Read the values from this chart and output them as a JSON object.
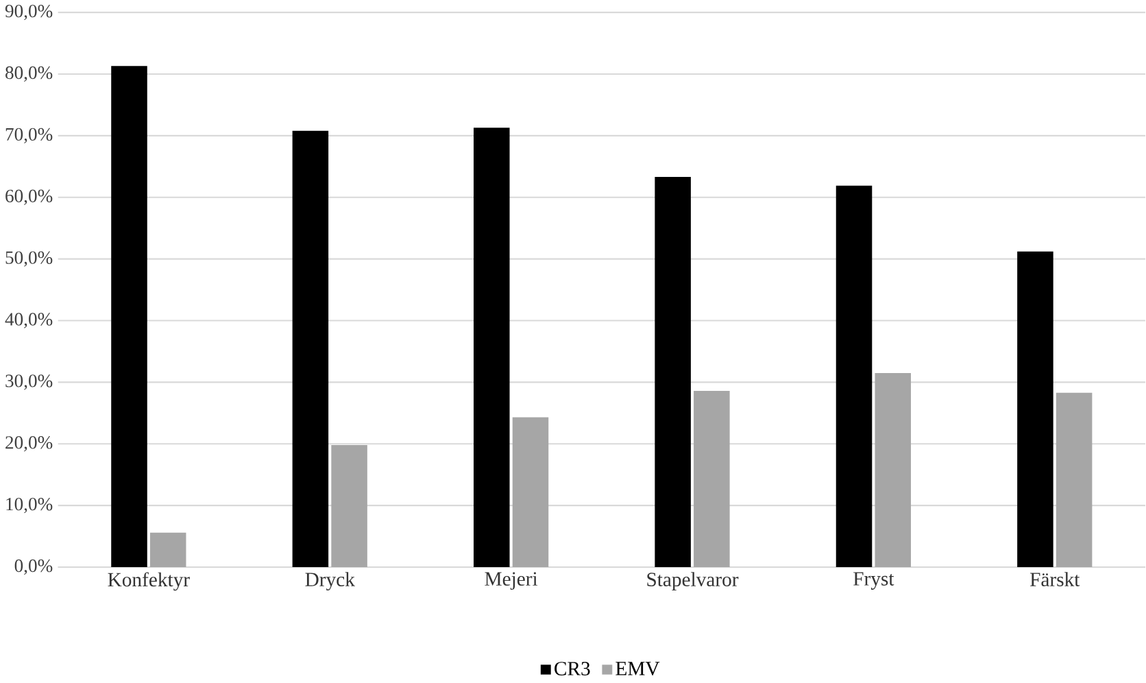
{
  "chart_data": {
    "type": "bar",
    "categories": [
      "Konfektyr",
      "Dryck",
      "Mejeri",
      "Stapelvaror",
      "Fryst",
      "Färskt"
    ],
    "series": [
      {
        "name": "CR3",
        "color": "#000000",
        "values": [
          81.3,
          70.8,
          71.3,
          63.3,
          61.9,
          51.2
        ]
      },
      {
        "name": "EMV",
        "color": "#a6a6a6",
        "values": [
          5.6,
          19.8,
          24.3,
          28.6,
          31.5,
          28.3
        ]
      }
    ],
    "ylim": [
      0,
      90
    ],
    "yticks": [
      {
        "value": 0,
        "label": "0,0%"
      },
      {
        "value": 10,
        "label": "10,0%"
      },
      {
        "value": 20,
        "label": "20,0%"
      },
      {
        "value": 30,
        "label": "30,0%"
      },
      {
        "value": 40,
        "label": "40,0%"
      },
      {
        "value": 50,
        "label": "50,0%"
      },
      {
        "value": 60,
        "label": "60,0%"
      },
      {
        "value": 70,
        "label": "70,0%"
      },
      {
        "value": 80,
        "label": "80,0%"
      },
      {
        "value": 90,
        "label": "90,0%"
      }
    ],
    "grid": "y",
    "legend": "bottom"
  }
}
